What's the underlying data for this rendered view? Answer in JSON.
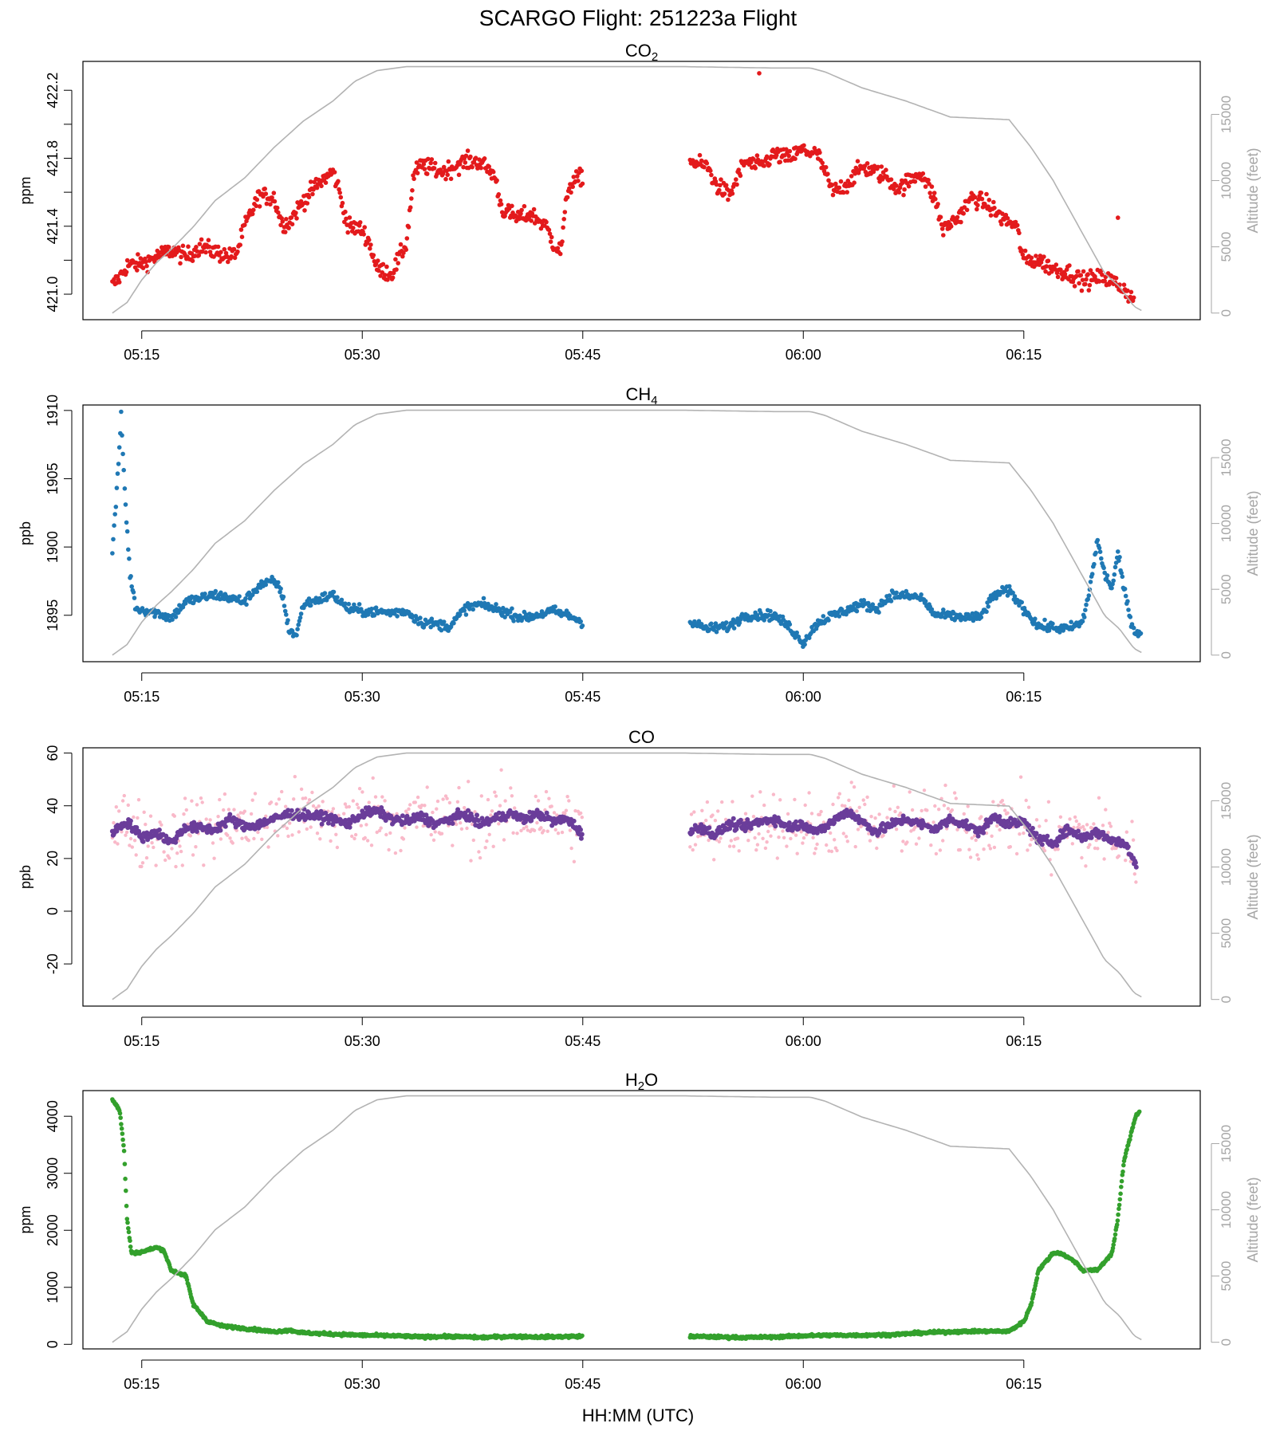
{
  "title": "SCARGO Flight: 251223a  Flight",
  "x_axis_label": "HH:MM (UTC)",
  "colors": {
    "co2": "#e31a1c",
    "ch4": "#1f78b4",
    "co_raw": "#f9b9c9",
    "co_smooth": "#6a3d9a",
    "h2o": "#33a02c",
    "altitude": "#b3b3b3",
    "altitude_axis": "#a6a6a6"
  },
  "chart_data": [
    {
      "type": "scatter",
      "id": "co2",
      "title": "CO2",
      "title_main": "CO",
      "title_sub": "2",
      "ylabel": "ppm",
      "xlim": [
        311,
        387
      ],
      "ylim": [
        420.85,
        422.37
      ],
      "yticks": [
        421.0,
        421.2,
        421.4,
        421.6,
        421.8,
        422.0,
        422.2
      ],
      "ytick_labels": [
        "421.0",
        "",
        "421.4",
        "",
        "421.8",
        "",
        "422.2"
      ],
      "xticks": [
        315,
        330,
        345,
        360,
        375
      ],
      "xtick_labels": [
        "05:15",
        "05:30",
        "05:45",
        "06:00",
        "06:15"
      ],
      "series_anchors": [
        [
          313.0,
          421.05
        ],
        [
          313.5,
          421.1
        ],
        [
          314.0,
          421.17
        ],
        [
          315.0,
          421.18
        ],
        [
          316.0,
          421.22
        ],
        [
          317.0,
          421.26
        ],
        [
          318.0,
          421.22
        ],
        [
          319.0,
          421.28
        ],
        [
          320.0,
          421.25
        ],
        [
          321.0,
          421.22
        ],
        [
          321.5,
          421.25
        ],
        [
          322.0,
          421.4
        ],
        [
          323.0,
          421.58
        ],
        [
          324.0,
          421.57
        ],
        [
          324.5,
          421.42
        ],
        [
          325.0,
          421.42
        ],
        [
          326.0,
          421.55
        ],
        [
          327.0,
          421.65
        ],
        [
          328.0,
          421.72
        ],
        [
          328.3,
          421.65
        ],
        [
          328.6,
          421.55
        ],
        [
          329.0,
          421.4
        ],
        [
          330.0,
          421.38
        ],
        [
          330.5,
          421.3
        ],
        [
          331.0,
          421.15
        ],
        [
          332.0,
          421.12
        ],
        [
          333.0,
          421.3
        ],
        [
          333.5,
          421.7
        ],
        [
          334.0,
          421.76
        ],
        [
          335.5,
          421.72
        ],
        [
          337.0,
          421.78
        ],
        [
          338.0,
          421.78
        ],
        [
          339.0,
          421.7
        ],
        [
          339.5,
          421.5
        ],
        [
          340.5,
          421.45
        ],
        [
          341.5,
          421.47
        ],
        [
          342.5,
          421.4
        ],
        [
          343.0,
          421.3
        ],
        [
          343.5,
          421.25
        ],
        [
          344.0,
          421.63
        ],
        [
          345.0,
          421.7
        ]
      ],
      "series_anchors_2": [
        [
          352.3,
          421.78
        ],
        [
          353.5,
          421.75
        ],
        [
          354.0,
          421.65
        ],
        [
          355.0,
          421.58
        ],
        [
          356.0,
          421.78
        ],
        [
          357.0,
          421.75
        ],
        [
          358.0,
          421.82
        ],
        [
          359.0,
          421.8
        ],
        [
          360.0,
          421.85
        ],
        [
          361.0,
          421.82
        ],
        [
          362.0,
          421.6
        ],
        [
          363.0,
          421.65
        ],
        [
          364.0,
          421.75
        ],
        [
          365.5,
          421.7
        ],
        [
          366.5,
          421.62
        ],
        [
          368.0,
          421.72
        ],
        [
          369.0,
          421.55
        ],
        [
          369.5,
          421.38
        ],
        [
          370.5,
          421.45
        ],
        [
          371.5,
          421.57
        ],
        [
          372.5,
          421.53
        ],
        [
          373.5,
          421.45
        ],
        [
          374.5,
          421.4
        ],
        [
          375.0,
          421.2
        ],
        [
          376.0,
          421.2
        ],
        [
          377.0,
          421.15
        ],
        [
          378.0,
          421.13
        ],
        [
          379.0,
          421.08
        ],
        [
          380.5,
          421.1
        ],
        [
          381.5,
          421.05
        ],
        [
          382.0,
          421.02
        ],
        [
          382.5,
          420.95
        ]
      ],
      "outliers": [
        [
          357.0,
          422.3
        ],
        [
          381.4,
          421.45
        ]
      ]
    },
    {
      "type": "scatter",
      "id": "ch4",
      "title": "CH4",
      "title_main": "CH",
      "title_sub": "4",
      "ylabel": "ppb",
      "xlim": [
        311,
        387
      ],
      "ylim": [
        1891.6,
        1910.4
      ],
      "yticks": [
        1895,
        1900,
        1905,
        1910
      ],
      "ytick_labels": [
        "1895",
        "1900",
        "1905",
        "1910"
      ],
      "xticks": [
        315,
        330,
        345,
        360,
        375
      ],
      "xtick_labels": [
        "05:15",
        "05:30",
        "05:45",
        "06:00",
        "06:15"
      ],
      "series_anchors": [
        [
          313.0,
          1899.8
        ],
        [
          313.3,
          1904.0
        ],
        [
          313.6,
          1909.5
        ],
        [
          313.9,
          1903.0
        ],
        [
          314.2,
          1898.0
        ],
        [
          314.6,
          1895.5
        ],
        [
          316.0,
          1895.2
        ],
        [
          317.0,
          1894.8
        ],
        [
          318.0,
          1896.0
        ],
        [
          320.0,
          1896.5
        ],
        [
          322.0,
          1896.0
        ],
        [
          323.0,
          1897.2
        ],
        [
          324.0,
          1897.5
        ],
        [
          324.5,
          1896.8
        ],
        [
          325.0,
          1894.0
        ],
        [
          325.5,
          1893.5
        ],
        [
          326.0,
          1895.8
        ],
        [
          328.0,
          1896.5
        ],
        [
          329.0,
          1895.5
        ],
        [
          330.0,
          1895.3
        ],
        [
          332.0,
          1895.2
        ],
        [
          333.0,
          1895.3
        ],
        [
          334.0,
          1894.5
        ],
        [
          336.0,
          1894.2
        ],
        [
          337.0,
          1895.5
        ],
        [
          338.0,
          1895.8
        ],
        [
          339.0,
          1895.5
        ],
        [
          341.0,
          1894.8
        ],
        [
          343.0,
          1895.3
        ],
        [
          344.0,
          1895.0
        ],
        [
          345.0,
          1894.5
        ]
      ],
      "series_anchors_2": [
        [
          352.3,
          1894.5
        ],
        [
          353.5,
          1894.0
        ],
        [
          355.0,
          1894.2
        ],
        [
          356.0,
          1895.0
        ],
        [
          357.0,
          1895.0
        ],
        [
          358.0,
          1895.0
        ],
        [
          359.0,
          1894.2
        ],
        [
          360.0,
          1893.0
        ],
        [
          361.0,
          1894.5
        ],
        [
          362.0,
          1895.0
        ],
        [
          364.0,
          1895.8
        ],
        [
          365.0,
          1895.5
        ],
        [
          366.0,
          1896.5
        ],
        [
          368.0,
          1896.3
        ],
        [
          369.0,
          1895.0
        ],
        [
          372.0,
          1894.8
        ],
        [
          373.0,
          1896.5
        ],
        [
          374.0,
          1896.8
        ],
        [
          375.0,
          1895.5
        ],
        [
          376.0,
          1894.2
        ],
        [
          378.0,
          1894.0
        ],
        [
          379.0,
          1894.5
        ],
        [
          379.5,
          1897.0
        ],
        [
          380.0,
          1900.5
        ],
        [
          380.5,
          1898.0
        ],
        [
          381.0,
          1897.0
        ],
        [
          381.4,
          1899.5
        ],
        [
          381.8,
          1897.0
        ],
        [
          382.1,
          1895.5
        ],
        [
          382.5,
          1893.8
        ],
        [
          383.0,
          1893.8
        ]
      ]
    },
    {
      "type": "scatter",
      "id": "co",
      "title": "CO",
      "title_main": "CO",
      "title_sub": "",
      "ylabel": "ppb",
      "xlim": [
        311,
        387
      ],
      "ylim": [
        -36,
        62
      ],
      "yticks": [
        -20,
        0,
        20,
        40,
        60
      ],
      "ytick_labels": [
        "-20",
        "0",
        "20",
        "40",
        "60"
      ],
      "xticks": [
        315,
        330,
        345,
        360,
        375
      ],
      "xtick_labels": [
        "05:15",
        "05:30",
        "05:45",
        "06:00",
        "06:15"
      ],
      "series_anchors": [
        [
          313.0,
          30
        ],
        [
          314.0,
          34
        ],
        [
          315.0,
          28
        ],
        [
          316.0,
          30
        ],
        [
          317.0,
          26
        ],
        [
          318.0,
          32
        ],
        [
          320.0,
          31
        ],
        [
          321.0,
          35
        ],
        [
          322.0,
          32
        ],
        [
          323.0,
          33
        ],
        [
          324.0,
          35
        ],
        [
          325.0,
          37
        ],
        [
          327.0,
          36
        ],
        [
          328.0,
          35
        ],
        [
          329.0,
          33
        ],
        [
          330.0,
          37
        ],
        [
          331.0,
          38
        ],
        [
          332.0,
          35
        ],
        [
          333.0,
          34
        ],
        [
          334.0,
          36
        ],
        [
          335.0,
          33
        ],
        [
          336.0,
          35
        ],
        [
          337.0,
          37
        ],
        [
          338.0,
          33
        ],
        [
          339.0,
          35
        ],
        [
          340.0,
          37
        ],
        [
          341.0,
          35
        ],
        [
          342.0,
          37
        ],
        [
          343.0,
          34
        ],
        [
          344.0,
          35
        ],
        [
          345.0,
          29
        ]
      ],
      "series_anchors_2": [
        [
          352.3,
          30
        ],
        [
          353.0,
          32
        ],
        [
          354.0,
          29
        ],
        [
          355.0,
          33
        ],
        [
          356.0,
          32
        ],
        [
          357.0,
          34
        ],
        [
          358.0,
          35
        ],
        [
          359.0,
          32
        ],
        [
          360.0,
          33
        ],
        [
          361.0,
          30
        ],
        [
          362.0,
          34
        ],
        [
          363.0,
          38
        ],
        [
          364.0,
          34
        ],
        [
          365.0,
          30
        ],
        [
          366.0,
          33
        ],
        [
          367.0,
          35
        ],
        [
          368.0,
          33
        ],
        [
          369.0,
          31
        ],
        [
          370.0,
          35
        ],
        [
          371.0,
          33
        ],
        [
          372.0,
          30
        ],
        [
          373.0,
          36
        ],
        [
          374.0,
          33
        ],
        [
          375.0,
          34
        ],
        [
          376.0,
          27
        ],
        [
          377.0,
          26
        ],
        [
          378.0,
          31
        ],
        [
          379.0,
          28
        ],
        [
          380.0,
          30
        ],
        [
          381.0,
          27
        ],
        [
          382.0,
          25
        ],
        [
          382.7,
          17
        ]
      ]
    },
    {
      "type": "scatter",
      "id": "h2o",
      "title": "H2O",
      "title_main": "H",
      "title_sub": "2",
      "title_tail": "O",
      "ylabel": "ppm",
      "xlim": [
        311,
        387
      ],
      "ylim": [
        -80,
        4450
      ],
      "yticks": [
        0,
        1000,
        2000,
        3000,
        4000
      ],
      "ytick_labels": [
        "0",
        "1000",
        "2000",
        "3000",
        "4000"
      ],
      "xticks": [
        315,
        330,
        345,
        360,
        375
      ],
      "xtick_labels": [
        "05:15",
        "05:30",
        "05:45",
        "06:00",
        "06:15"
      ],
      "series_anchors": [
        [
          313.0,
          4300
        ],
        [
          313.5,
          4100
        ],
        [
          313.8,
          3400
        ],
        [
          314.0,
          2200
        ],
        [
          314.3,
          1600
        ],
        [
          315.0,
          1620
        ],
        [
          316.0,
          1700
        ],
        [
          316.5,
          1650
        ],
        [
          317.0,
          1300
        ],
        [
          318.0,
          1200
        ],
        [
          318.5,
          700
        ],
        [
          319.5,
          400
        ],
        [
          320.5,
          320
        ],
        [
          322.0,
          280
        ],
        [
          324.0,
          220
        ],
        [
          325.0,
          250
        ],
        [
          326.0,
          200
        ],
        [
          328.0,
          180
        ],
        [
          330.0,
          160
        ],
        [
          332.0,
          150
        ],
        [
          334.0,
          130
        ],
        [
          336.0,
          140
        ],
        [
          338.0,
          120
        ],
        [
          340.0,
          140
        ],
        [
          342.0,
          130
        ],
        [
          345.0,
          140
        ]
      ],
      "series_anchors_2": [
        [
          352.3,
          140
        ],
        [
          354.0,
          130
        ],
        [
          356.0,
          120
        ],
        [
          358.0,
          130
        ],
        [
          360.0,
          150
        ],
        [
          362.0,
          160
        ],
        [
          364.0,
          160
        ],
        [
          366.0,
          170
        ],
        [
          368.0,
          200
        ],
        [
          370.0,
          220
        ],
        [
          372.0,
          230
        ],
        [
          374.0,
          230
        ],
        [
          375.0,
          400
        ],
        [
          375.5,
          700
        ],
        [
          376.0,
          1300
        ],
        [
          377.0,
          1600
        ],
        [
          377.5,
          1600
        ],
        [
          378.5,
          1450
        ],
        [
          379.0,
          1300
        ],
        [
          380.0,
          1300
        ],
        [
          381.0,
          1600
        ],
        [
          381.4,
          2200
        ],
        [
          381.8,
          3200
        ],
        [
          382.2,
          3600
        ],
        [
          382.6,
          4000
        ],
        [
          382.9,
          4100
        ]
      ]
    }
  ],
  "altitude": {
    "label": "Altitude (feet)",
    "ylim": [
      -500,
      19000
    ],
    "yticks": [
      0,
      5000,
      10000,
      15000
    ],
    "ytick_labels": [
      "0",
      "5000",
      "10000",
      "15000"
    ],
    "anchors": [
      [
        313.0,
        0
      ],
      [
        314.0,
        800
      ],
      [
        315.0,
        2500
      ],
      [
        316.0,
        3800
      ],
      [
        317.0,
        4800
      ],
      [
        318.5,
        6500
      ],
      [
        320.0,
        8500
      ],
      [
        322.0,
        10200
      ],
      [
        324.0,
        12500
      ],
      [
        326.0,
        14500
      ],
      [
        328.0,
        16000
      ],
      [
        329.5,
        17500
      ],
      [
        331.0,
        18300
      ],
      [
        333.0,
        18600
      ],
      [
        345.0,
        18600
      ],
      [
        352.0,
        18600
      ],
      [
        358.0,
        18500
      ],
      [
        360.5,
        18500
      ],
      [
        361.5,
        18200
      ],
      [
        364.0,
        17000
      ],
      [
        367.0,
        16000
      ],
      [
        369.0,
        15200
      ],
      [
        370.0,
        14800
      ],
      [
        374.0,
        14600
      ],
      [
        375.5,
        12500
      ],
      [
        377.0,
        10000
      ],
      [
        379.5,
        5000
      ],
      [
        380.5,
        3000
      ],
      [
        381.5,
        2000
      ],
      [
        382.5,
        500
      ],
      [
        383.0,
        200
      ]
    ]
  }
}
